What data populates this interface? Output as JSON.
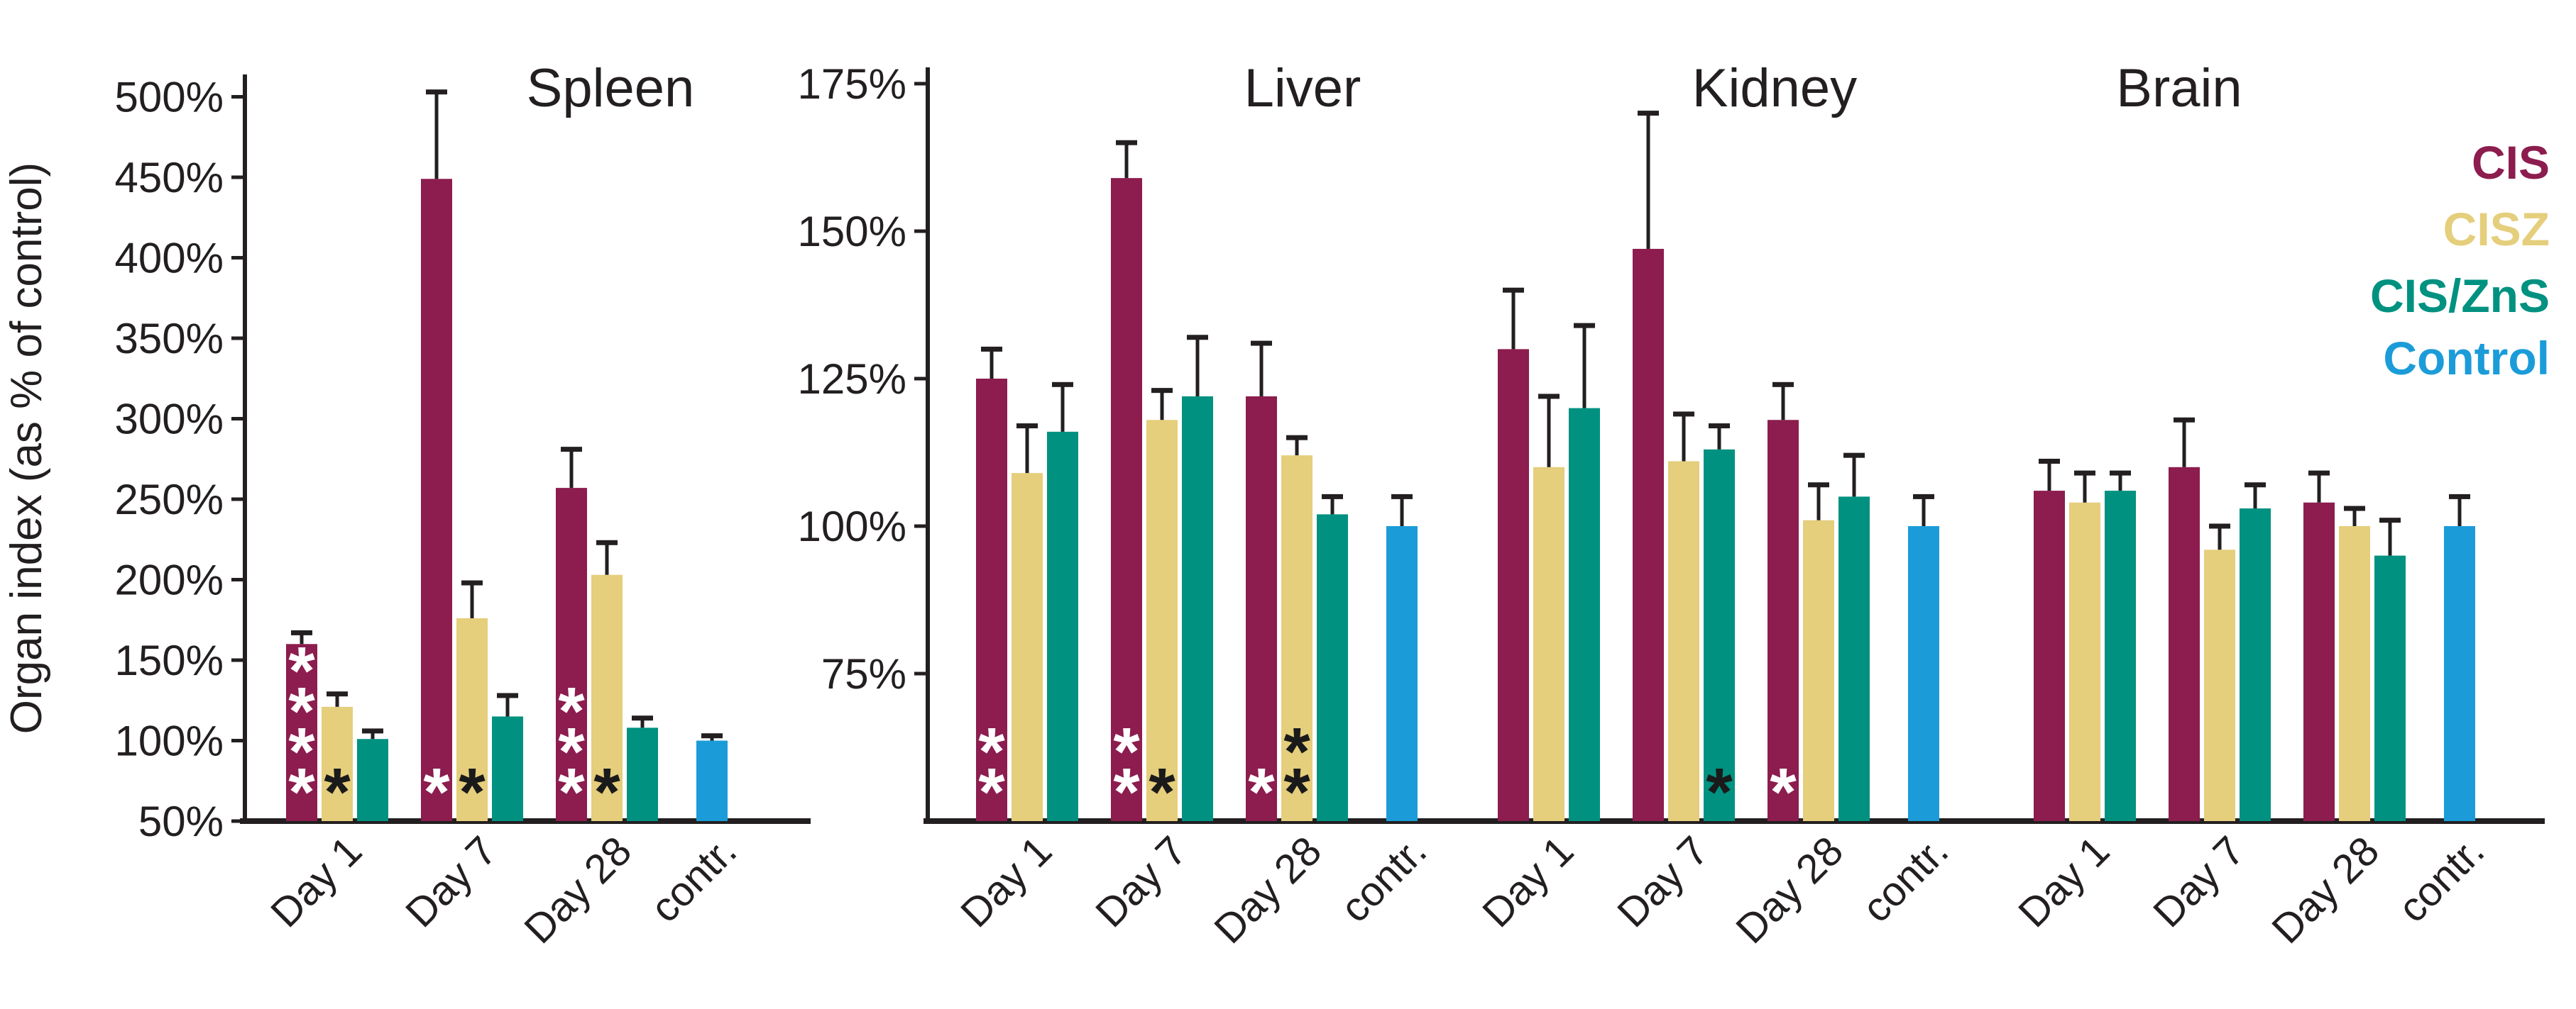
{
  "figure": {
    "ylabel": "Organ index (as % of control)",
    "tick_suffix": "%",
    "left_axis": {
      "ymin": 50,
      "ymax": 500,
      "ticks": [
        500,
        450,
        400,
        350,
        300,
        250,
        200,
        150,
        100,
        50
      ]
    },
    "right_axis": {
      "ymin": 50,
      "ymax": 175,
      "ticks": [
        175,
        150,
        125,
        100,
        75
      ]
    },
    "categories": [
      "Day 1",
      "Day 7",
      "Day 28",
      "contr."
    ],
    "legend": [
      {
        "label": "CIS",
        "color": "#8C1D4E"
      },
      {
        "label": "CISZ",
        "color": "#E5CE7C"
      },
      {
        "label": "CIS/ZnS",
        "color": "#009180"
      },
      {
        "label": "Control",
        "color": "#1B9CD9"
      }
    ],
    "colors": {
      "axis": "#231F20",
      "background": "#FFFFFF",
      "sig_on_cis": "#FFFFFF",
      "sig_on_other": "#1A1A1A",
      "cis": "#8C1D4E",
      "cisz": "#E5CE7C",
      "cis_zns": "#009180",
      "control": "#1B9CD9"
    }
  },
  "chart_data": {
    "type": "bar",
    "title": "",
    "ylabel": "Organ index (as % of control)",
    "unit": "% of control",
    "value_suffix": "%",
    "categories": [
      "Day 1",
      "Day 7",
      "Day 28",
      "contr."
    ],
    "legend_position": "top-right",
    "grid": false,
    "panels": [
      {
        "organ": "Spleen",
        "axis": "left",
        "ylim": [
          50,
          500
        ],
        "yticks": [
          50,
          100,
          150,
          200,
          250,
          300,
          350,
          400,
          450,
          500
        ],
        "series": [
          {
            "name": "CIS",
            "values": [
              160,
              449,
              257,
              null
            ],
            "errors": [
              7,
              54,
              24,
              null
            ],
            "sig": [
              "****",
              "*",
              "***",
              null
            ]
          },
          {
            "name": "CISZ",
            "values": [
              121,
              176,
              203,
              null
            ],
            "errors": [
              8,
              22,
              20,
              null
            ],
            "sig": [
              "*",
              "*",
              "*",
              null
            ]
          },
          {
            "name": "CIS/ZnS",
            "values": [
              101,
              115,
              108,
              null
            ],
            "errors": [
              5,
              13,
              6,
              null
            ],
            "sig": [
              null,
              null,
              null,
              null
            ]
          },
          {
            "name": "Control",
            "values": [
              null,
              null,
              null,
              100
            ],
            "errors": [
              null,
              null,
              null,
              3
            ],
            "sig": [
              null,
              null,
              null,
              null
            ]
          }
        ]
      },
      {
        "organ": "Liver",
        "axis": "right",
        "ylim": [
          50,
          175
        ],
        "yticks": [
          75,
          100,
          125,
          150,
          175
        ],
        "series": [
          {
            "name": "CIS",
            "values": [
              125,
              159,
              122,
              null
            ],
            "errors": [
              5,
              6,
              9,
              null
            ],
            "sig": [
              "**",
              "**",
              "*",
              null
            ]
          },
          {
            "name": "CISZ",
            "values": [
              109,
              118,
              112,
              null
            ],
            "errors": [
              8,
              5,
              3,
              null
            ],
            "sig": [
              null,
              "*",
              "**",
              null
            ]
          },
          {
            "name": "CIS/ZnS",
            "values": [
              116,
              122,
              102,
              null
            ],
            "errors": [
              8,
              10,
              3,
              null
            ],
            "sig": [
              null,
              null,
              null,
              null
            ]
          },
          {
            "name": "Control",
            "values": [
              null,
              null,
              null,
              100
            ],
            "errors": [
              null,
              null,
              null,
              5
            ],
            "sig": [
              null,
              null,
              null,
              null
            ]
          }
        ]
      },
      {
        "organ": "Kidney",
        "axis": "right",
        "ylim": [
          50,
          175
        ],
        "yticks": [
          75,
          100,
          125,
          150,
          175
        ],
        "series": [
          {
            "name": "CIS",
            "values": [
              130,
              147,
              118,
              null
            ],
            "errors": [
              10,
              23,
              6,
              null
            ],
            "sig": [
              null,
              null,
              "*",
              null
            ]
          },
          {
            "name": "CISZ",
            "values": [
              110,
              111,
              101,
              null
            ],
            "errors": [
              12,
              8,
              6,
              null
            ],
            "sig": [
              null,
              null,
              null,
              null
            ]
          },
          {
            "name": "CIS/ZnS",
            "values": [
              120,
              113,
              105,
              null
            ],
            "errors": [
              14,
              4,
              7,
              null
            ],
            "sig": [
              null,
              "*",
              null,
              null
            ]
          },
          {
            "name": "Control",
            "values": [
              null,
              null,
              null,
              100
            ],
            "errors": [
              null,
              null,
              null,
              5
            ],
            "sig": [
              null,
              null,
              null,
              null
            ]
          }
        ]
      },
      {
        "organ": "Brain",
        "axis": "right",
        "ylim": [
          50,
          175
        ],
        "yticks": [
          75,
          100,
          125,
          150,
          175
        ],
        "series": [
          {
            "name": "CIS",
            "values": [
              106,
              110,
              104,
              null
            ],
            "errors": [
              5,
              8,
              5,
              null
            ],
            "sig": [
              null,
              null,
              null,
              null
            ]
          },
          {
            "name": "CISZ",
            "values": [
              104,
              96,
              100,
              null
            ],
            "errors": [
              5,
              4,
              3,
              null
            ],
            "sig": [
              null,
              null,
              null,
              null
            ]
          },
          {
            "name": "CIS/ZnS",
            "values": [
              106,
              103,
              95,
              null
            ],
            "errors": [
              3,
              4,
              6,
              null
            ],
            "sig": [
              null,
              null,
              null,
              null
            ]
          },
          {
            "name": "Control",
            "values": [
              null,
              null,
              null,
              100
            ],
            "errors": [
              null,
              null,
              null,
              5
            ],
            "sig": [
              null,
              null,
              null,
              null
            ]
          }
        ]
      }
    ]
  }
}
